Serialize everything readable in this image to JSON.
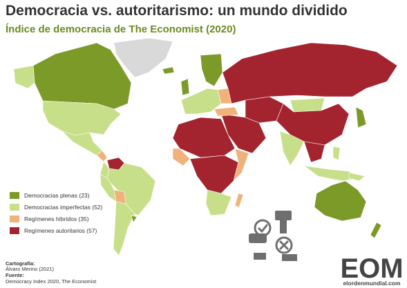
{
  "title": "Democracia vs. autoritarismo: un mundo dividido",
  "subtitle": "Índice de democracia de The Economist (2020)",
  "legend": [
    {
      "label": "Democracias plenas (23)",
      "color": "#7c9a28"
    },
    {
      "label": "Democracias imperfectas (52)",
      "color": "#c8df8a"
    },
    {
      "label": "Regímenes híbridos (35)",
      "color": "#f0b27a"
    },
    {
      "label": "Regímenes autoritarios (57)",
      "color": "#a3242f"
    }
  ],
  "credits": {
    "cartography_heading": "Cartografía:",
    "cartography": "Álvaro Merino (2021)",
    "source_heading": "Fuente:",
    "source": "Democracy Index 2020, The Economist"
  },
  "logo": {
    "mark": "EOM",
    "site": "elordenmundial.com"
  }
}
